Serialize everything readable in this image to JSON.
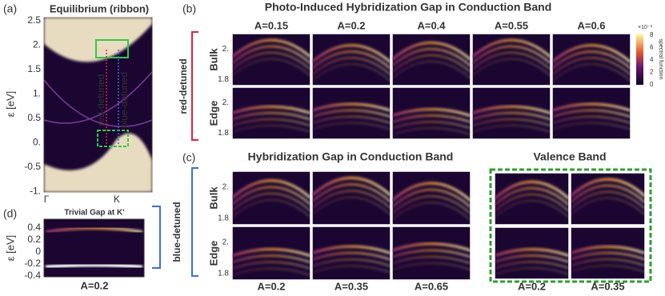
{
  "panel_a": {
    "label": "(a)",
    "title": "Equilibrium (ribbon)",
    "y_label": "ε [eV]",
    "y_ticks": [
      "2.5",
      "2.",
      "1.5",
      "1.",
      "0.5",
      "0.",
      "-0.5",
      "-1."
    ],
    "x_ticks": [
      "Γ",
      "K"
    ],
    "annotations": [
      "red-detuned",
      "blue-detuned"
    ]
  },
  "panel_b": {
    "label": "(b)",
    "title": "Photo-Induced Hybridization Gap in Conduction Band",
    "columns": [
      "A=0.15",
      "A=0.2",
      "A=0.4",
      "A=0.55",
      "A=0.6"
    ],
    "rows": [
      "Bulk",
      "Edge"
    ],
    "y_ticks": [
      "2.",
      "1.8"
    ],
    "side_label": "red-detuned",
    "colorbar": {
      "label": "spectral function",
      "scale": "×10⁻³",
      "ticks": [
        "8",
        "6",
        "4",
        "2",
        "0"
      ]
    }
  },
  "panel_c": {
    "label": "(c)",
    "rows": [
      "Bulk",
      "Edge"
    ],
    "y_ticks": [
      "2.",
      "1.8"
    ],
    "side_label": "blue-detuned",
    "conduction": {
      "title": "Hybridization Gap in Conduction Band",
      "columns": [
        "A=0.2",
        "A=0.35",
        "A=0.65"
      ]
    },
    "valence": {
      "title": "Valence Band",
      "columns": [
        "A=0.2",
        "A=0.35"
      ]
    }
  },
  "panel_d": {
    "label": "(d)",
    "title": "Trivial Gap at K'",
    "y_label": "ε [eV]",
    "y_ticks": [
      "0.4",
      "0.2",
      "0",
      "-0.2",
      "-0.4"
    ],
    "x_label": "A=0.2"
  }
}
